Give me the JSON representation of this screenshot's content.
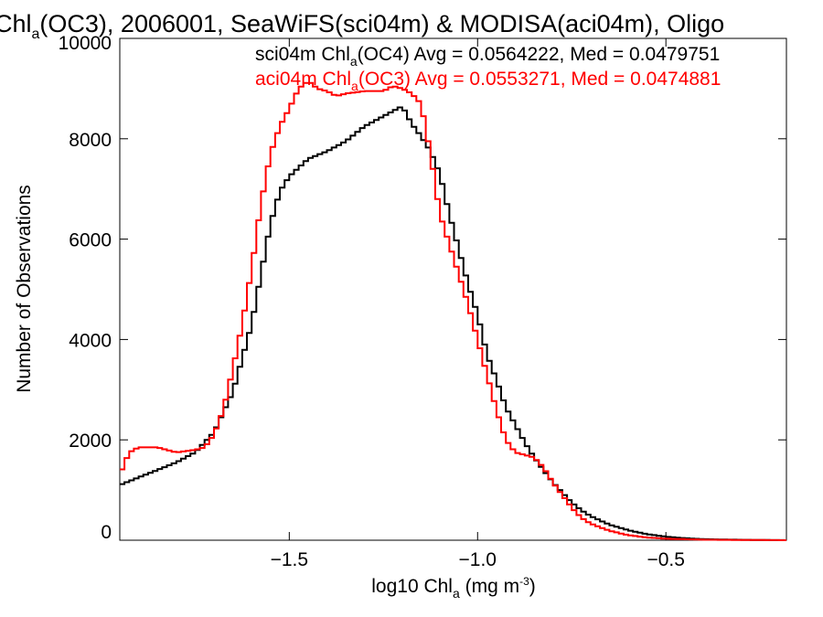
{
  "chart_data": {
    "type": "line",
    "title_parts": {
      "t1": "Chl",
      "t1_sub": "a",
      "t2": "(OC3), 2006001, SeaWiFS(sci04m) & MODISA(aci04m), Oligo"
    },
    "xlabel_parts": {
      "main": "log10 Chl",
      "sub": "a",
      "unit": " (mg m",
      "sup": "-3",
      "close": ")"
    },
    "ylabel": "Number of Observations",
    "xlim": [
      -1.95,
      -0.18
    ],
    "ylim": [
      0,
      10000
    ],
    "x_ticks": [
      {
        "value": -1.5,
        "label": "−1.5"
      },
      {
        "value": -1.0,
        "label": "−1.0"
      },
      {
        "value": -0.5,
        "label": "−0.5"
      }
    ],
    "y_ticks": [
      {
        "value": 0,
        "label": "0"
      },
      {
        "value": 2000,
        "label": "2000"
      },
      {
        "value": 4000,
        "label": "4000"
      },
      {
        "value": 6000,
        "label": "6000"
      },
      {
        "value": 8000,
        "label": "8000"
      },
      {
        "value": 10000,
        "label": "10000"
      }
    ],
    "legend": [
      {
        "prefix": "sci04m Chl",
        "sub": "a",
        "rest": "(OC4) Avg = 0.0564222, Med = 0.0479751",
        "color": "#000000"
      },
      {
        "prefix": "aci04m Chl",
        "sub": "a",
        "rest": "(OC3) Avg = 0.0553271, Med = 0.0474881",
        "color": "#ff0000"
      }
    ],
    "legend_position": "top-right",
    "series": [
      {
        "color": "#000000",
        "style": "step",
        "points": [
          [
            -1.95,
            1100
          ],
          [
            -1.9,
            1250
          ],
          [
            -1.85,
            1400
          ],
          [
            -1.8,
            1550
          ],
          [
            -1.75,
            1750
          ],
          [
            -1.7,
            2150
          ],
          [
            -1.65,
            2950
          ],
          [
            -1.6,
            4300
          ],
          [
            -1.575,
            5300
          ],
          [
            -1.55,
            6300
          ],
          [
            -1.525,
            6950
          ],
          [
            -1.5,
            7250
          ],
          [
            -1.45,
            7600
          ],
          [
            -1.4,
            7750
          ],
          [
            -1.35,
            7950
          ],
          [
            -1.3,
            8250
          ],
          [
            -1.25,
            8450
          ],
          [
            -1.2,
            8650
          ],
          [
            -1.175,
            8300
          ],
          [
            -1.15,
            8050
          ],
          [
            -1.125,
            7750
          ],
          [
            -1.1,
            7300
          ],
          [
            -1.075,
            6500
          ],
          [
            -1.05,
            5800
          ],
          [
            -1.025,
            5100
          ],
          [
            -1.0,
            4500
          ],
          [
            -0.975,
            3700
          ],
          [
            -0.95,
            3200
          ],
          [
            -0.925,
            2650
          ],
          [
            -0.9,
            2300
          ],
          [
            -0.875,
            1950
          ],
          [
            -0.85,
            1650
          ],
          [
            -0.825,
            1400
          ],
          [
            -0.8,
            1150
          ],
          [
            -0.775,
            950
          ],
          [
            -0.75,
            750
          ],
          [
            -0.725,
            600
          ],
          [
            -0.7,
            480
          ],
          [
            -0.65,
            310
          ],
          [
            -0.6,
            200
          ],
          [
            -0.55,
            120
          ],
          [
            -0.5,
            70
          ],
          [
            -0.45,
            40
          ],
          [
            -0.4,
            20
          ],
          [
            -0.3,
            8
          ],
          [
            -0.18,
            0
          ]
        ]
      },
      {
        "color": "#ff0000",
        "style": "step",
        "points": [
          [
            -1.95,
            1300
          ],
          [
            -1.925,
            1750
          ],
          [
            -1.9,
            1850
          ],
          [
            -1.85,
            1850
          ],
          [
            -1.8,
            1750
          ],
          [
            -1.75,
            1800
          ],
          [
            -1.725,
            1850
          ],
          [
            -1.7,
            2100
          ],
          [
            -1.675,
            2600
          ],
          [
            -1.65,
            3400
          ],
          [
            -1.625,
            4300
          ],
          [
            -1.6,
            5400
          ],
          [
            -1.575,
            6700
          ],
          [
            -1.55,
            7700
          ],
          [
            -1.525,
            8250
          ],
          [
            -1.5,
            8600
          ],
          [
            -1.475,
            9000
          ],
          [
            -1.45,
            9150
          ],
          [
            -1.425,
            9000
          ],
          [
            -1.4,
            8950
          ],
          [
            -1.375,
            8850
          ],
          [
            -1.35,
            8900
          ],
          [
            -1.3,
            8950
          ],
          [
            -1.25,
            8950
          ],
          [
            -1.225,
            9050
          ],
          [
            -1.2,
            9000
          ],
          [
            -1.175,
            8900
          ],
          [
            -1.15,
            8700
          ],
          [
            -1.125,
            7700
          ],
          [
            -1.1,
            6500
          ],
          [
            -1.075,
            5900
          ],
          [
            -1.05,
            5300
          ],
          [
            -1.025,
            4700
          ],
          [
            -1.0,
            4000
          ],
          [
            -0.975,
            3300
          ],
          [
            -0.95,
            2600
          ],
          [
            -0.925,
            2000
          ],
          [
            -0.9,
            1750
          ],
          [
            -0.875,
            1700
          ],
          [
            -0.85,
            1650
          ],
          [
            -0.825,
            1450
          ],
          [
            -0.8,
            1150
          ],
          [
            -0.775,
            900
          ],
          [
            -0.75,
            650
          ],
          [
            -0.725,
            450
          ],
          [
            -0.7,
            330
          ],
          [
            -0.65,
            190
          ],
          [
            -0.6,
            100
          ],
          [
            -0.55,
            55
          ],
          [
            -0.5,
            30
          ],
          [
            -0.4,
            10
          ],
          [
            -0.18,
            0
          ]
        ]
      }
    ]
  }
}
